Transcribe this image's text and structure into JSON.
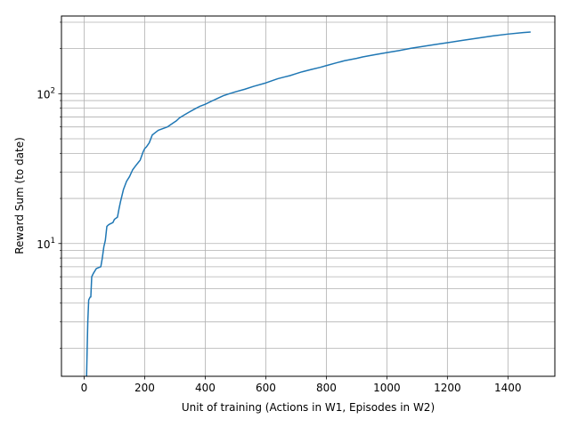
{
  "chart_data": {
    "type": "line",
    "title": "",
    "xlabel": "Unit of training (Actions in W1, Episodes in W2)",
    "ylabel": "Reward Sum (to date)",
    "yscale": "log",
    "xlim": [
      -75,
      1555
    ],
    "ylim": [
      1.3,
      330
    ],
    "x_ticks": [
      0,
      200,
      400,
      600,
      800,
      1000,
      1200,
      1400
    ],
    "y_major_ticks": [
      10,
      100
    ],
    "y_major_labels": [
      "10^1",
      "10^2"
    ],
    "y_minor_ticks": [
      2,
      3,
      4,
      5,
      6,
      7,
      8,
      9,
      20,
      30,
      40,
      50,
      60,
      70,
      80,
      90,
      200,
      300
    ],
    "grid": "on (major and minor)",
    "line_color": "#1f77b4",
    "grid_color": "#b0b0b0",
    "series": [
      {
        "name": "",
        "x": [
          8,
          10,
          12,
          15,
          20,
          22,
          25,
          30,
          40,
          55,
          60,
          65,
          70,
          75,
          80,
          85,
          95,
          100,
          110,
          115,
          120,
          130,
          140,
          150,
          160,
          165,
          170,
          180,
          185,
          195,
          200,
          205,
          215,
          225,
          230,
          235,
          245,
          255,
          265,
          275,
          280,
          295,
          305,
          315,
          330,
          345,
          365,
          380,
          400,
          420,
          440,
          460,
          480,
          500,
          530,
          560,
          600,
          620,
          640,
          660,
          680,
          700,
          720,
          750,
          780,
          800,
          830,
          860,
          900,
          920,
          960,
          1000,
          1040,
          1080,
          1120,
          1160,
          1200,
          1250,
          1300,
          1350,
          1400,
          1450,
          1475
        ],
        "y": [
          1.3,
          2.0,
          3.0,
          4.2,
          4.4,
          4.4,
          6.0,
          6.3,
          6.8,
          7.0,
          8.0,
          9.5,
          10.5,
          13.0,
          13.3,
          13.5,
          13.8,
          14.5,
          15.0,
          17.0,
          19.0,
          23.0,
          26.0,
          28.0,
          31.0,
          32.0,
          33.0,
          35.0,
          36.0,
          41.0,
          43.0,
          44.0,
          47.0,
          53.0,
          54.0,
          55.0,
          57.0,
          58.0,
          59.0,
          60.0,
          61.0,
          64.0,
          66.0,
          69.0,
          72.0,
          75.0,
          79.0,
          82.0,
          85.0,
          89.0,
          93.0,
          97.0,
          100.0,
          103.0,
          107.0,
          112.0,
          118.0,
          122.0,
          126.0,
          129.0,
          132.0,
          136.0,
          140.0,
          145.0,
          150.0,
          154.0,
          160.0,
          166.0,
          172.0,
          176.0,
          182.0,
          188.0,
          194.0,
          201.0,
          207.0,
          213.0,
          219.0,
          227.0,
          235.0,
          243.0,
          250.0,
          256.0,
          258.0
        ]
      }
    ]
  }
}
